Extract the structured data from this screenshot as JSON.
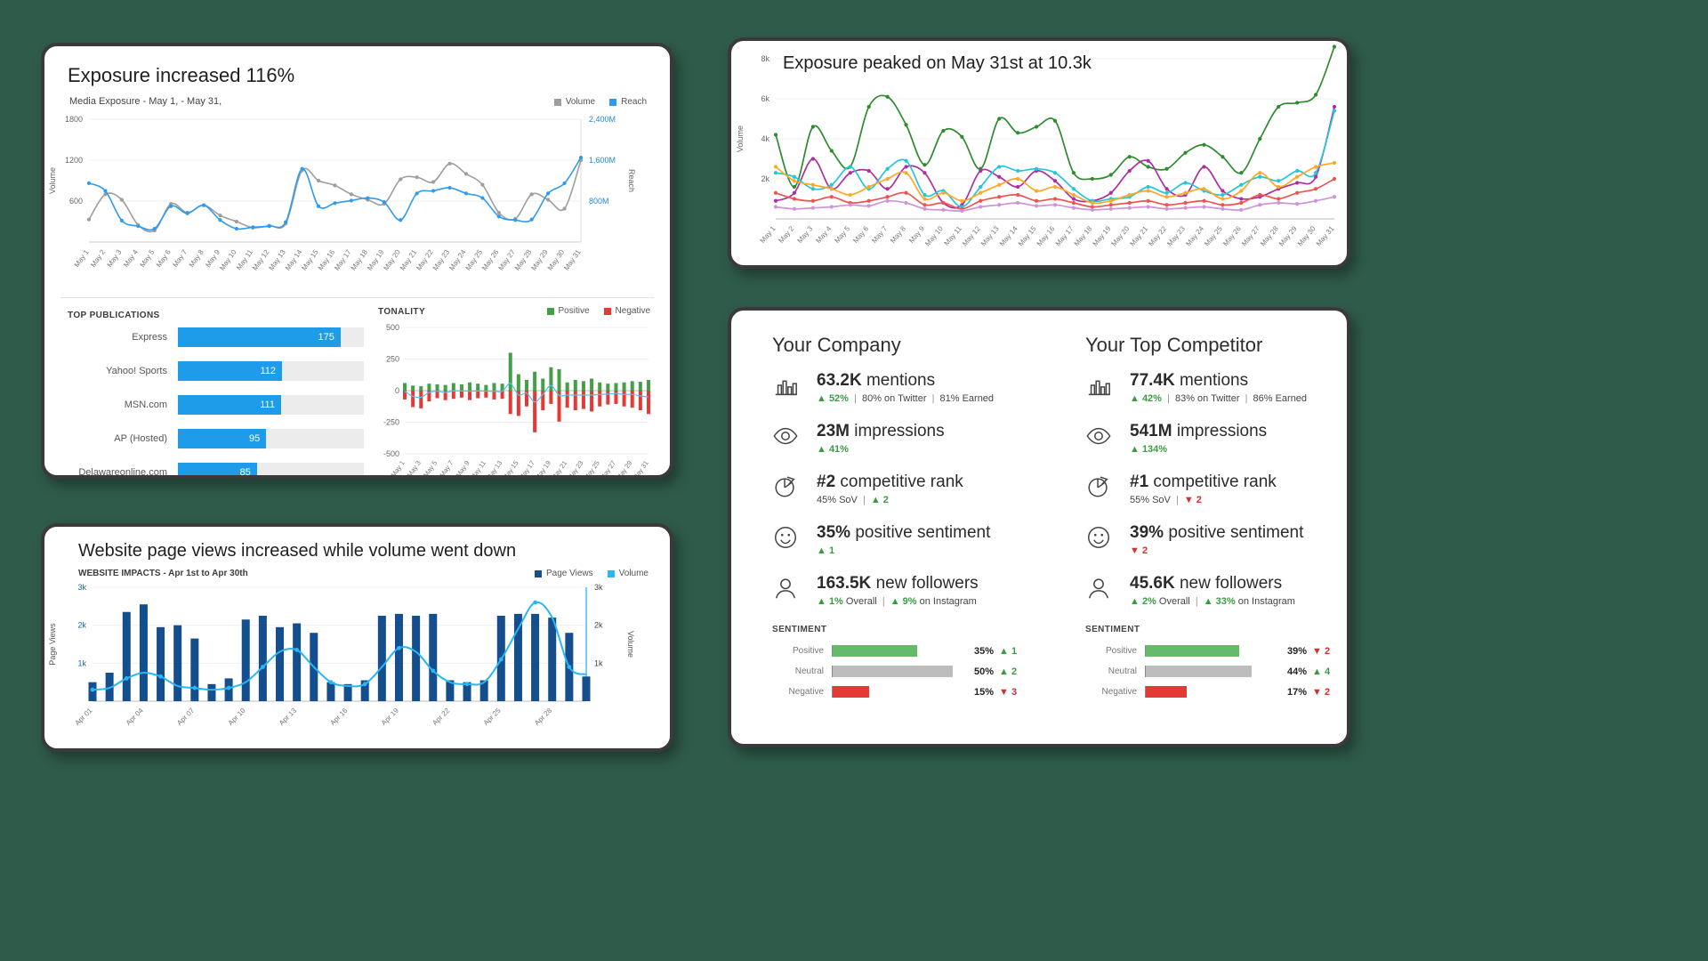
{
  "background_color": "#2F5B4A",
  "panels": {
    "exposure": {
      "title": "Exposure increased 116%",
      "subtitle": "Media Exposure - May 1, - May 31,",
      "legend": [
        {
          "label": "Volume",
          "color": "#9E9E9E"
        },
        {
          "label": "Reach",
          "color": "#2E9BF0"
        }
      ],
      "publications_title": "TOP PUBLICATIONS",
      "tonality_title": "TONALITY",
      "tonality_legend": [
        {
          "label": "Positive",
          "color": "#43A047"
        },
        {
          "label": "Negative",
          "color": "#E53935"
        }
      ]
    },
    "peak": {
      "title": "Exposure peaked on May 31st at 10.3k",
      "ylabel": "Volume"
    },
    "website": {
      "title": "Website page views increased while volume went down",
      "subtitle": "WEBSITE IMPACTS - Apr 1st to Apr 30th",
      "legend": [
        {
          "label": "Page Views",
          "color": "#144E8C"
        },
        {
          "label": "Volume",
          "color": "#29B6F6"
        }
      ]
    },
    "compare": {
      "company": {
        "title": "Your Company",
        "stats": [
          {
            "icon": "bar-chart",
            "value": "63.2K",
            "label": "mentions",
            "sub": [
              [
                "up",
                "▲ 52%"
              ],
              [
                "sep",
                "|"
              ],
              [
                "plain",
                "80% on Twitter"
              ],
              [
                "sep",
                "|"
              ],
              [
                "plain",
                "81% Earned"
              ]
            ]
          },
          {
            "icon": "eye",
            "value": "23M",
            "label": "impressions",
            "sub": [
              [
                "up",
                "▲ 41%"
              ]
            ]
          },
          {
            "icon": "pie",
            "value": "#2",
            "label": "competitive rank",
            "sub": [
              [
                "plain",
                "45% SoV"
              ],
              [
                "sep",
                "|"
              ],
              [
                "up",
                "▲ 2"
              ]
            ]
          },
          {
            "icon": "smiley",
            "value": "35%",
            "label": "positive sentiment",
            "sub": [
              [
                "up",
                "▲ 1"
              ]
            ]
          },
          {
            "icon": "person",
            "value": "163.5K",
            "label": "new followers",
            "sub": [
              [
                "up",
                "▲ 1%"
              ],
              [
                "plain",
                "Overall"
              ],
              [
                "sep",
                "|"
              ],
              [
                "up",
                "▲ 9%"
              ],
              [
                "plain",
                "on Instagram"
              ]
            ]
          }
        ]
      },
      "competitor": {
        "title": "Your Top Competitor",
        "stats": [
          {
            "icon": "bar-chart",
            "value": "77.4K",
            "label": "mentions",
            "sub": [
              [
                "up",
                "▲ 42%"
              ],
              [
                "sep",
                "|"
              ],
              [
                "plain",
                "83% on Twitter"
              ],
              [
                "sep",
                "|"
              ],
              [
                "plain",
                "86% Earned"
              ]
            ]
          },
          {
            "icon": "eye",
            "value": "541M",
            "label": "impressions",
            "sub": [
              [
                "up",
                "▲ 134%"
              ]
            ]
          },
          {
            "icon": "pie",
            "value": "#1",
            "label": "competitive rank",
            "sub": [
              [
                "plain",
                "55% SoV"
              ],
              [
                "sep",
                "|"
              ],
              [
                "down",
                "▼ 2"
              ]
            ]
          },
          {
            "icon": "smiley",
            "value": "39%",
            "label": "positive sentiment",
            "sub": [
              [
                "down",
                "▼ 2"
              ]
            ]
          },
          {
            "icon": "person",
            "value": "45.6K",
            "label": "new followers",
            "sub": [
              [
                "up",
                "▲ 2%"
              ],
              [
                "plain",
                "Overall"
              ],
              [
                "sep",
                "|"
              ],
              [
                "up",
                "▲ 33%"
              ],
              [
                "plain",
                "on Instagram"
              ]
            ]
          }
        ]
      },
      "sentiment": {
        "title": "SENTIMENT",
        "company": [
          [
            "Positive",
            "35%",
            "▲ 1",
            "up",
            35,
            "#66BB6A"
          ],
          [
            "Neutral",
            "50%",
            "▲ 2",
            "up",
            50,
            "#BDBDBD"
          ],
          [
            "Negative",
            "15%",
            "▼ 3",
            "down",
            15,
            "#E53935"
          ]
        ],
        "competitor": [
          [
            "Positive",
            "39%",
            "▼ 2",
            "down",
            39,
            "#66BB6A"
          ],
          [
            "Neutral",
            "44%",
            "▲ 4",
            "up",
            44,
            "#BDBDBD"
          ],
          [
            "Negative",
            "17%",
            "▼ 2",
            "down",
            17,
            "#E53935"
          ]
        ]
      }
    }
  },
  "chart_data": [
    {
      "id": "media_exposure",
      "type": "line",
      "title": "Media Exposure - May 1, - May 31,",
      "x": [
        "May 1",
        "May 2",
        "May 3",
        "May 4",
        "May 5",
        "May 6",
        "May 7",
        "May 8",
        "May 9",
        "May 10",
        "May 11",
        "May 12",
        "May 13",
        "May 14",
        "May 15",
        "May 16",
        "May 17",
        "May 18",
        "May 19",
        "May 20",
        "May 21",
        "May 22",
        "May 23",
        "May 24",
        "May 25",
        "May 26",
        "May 27",
        "May 28",
        "May 29",
        "May 30",
        "May 31"
      ],
      "ylabel_left": "Volume",
      "ylabel_right": "Reach",
      "left_max": 1800,
      "left_ticks": [
        600,
        1200,
        1800
      ],
      "right_max": 2400,
      "right_tick_vals": [
        800,
        1600,
        2400
      ],
      "right_ticks": [
        "800M",
        "1,600M",
        "2,400M"
      ],
      "legend_position": "top-right",
      "series": [
        {
          "name": "Volume",
          "axis": "left",
          "color": "#9E9E9E",
          "values": [
            330,
            700,
            620,
            250,
            170,
            560,
            430,
            540,
            390,
            300,
            210,
            240,
            270,
            1050,
            900,
            830,
            700,
            620,
            560,
            920,
            950,
            880,
            1150,
            1000,
            840,
            430,
            340,
            700,
            620,
            490,
            1200
          ]
        },
        {
          "name": "Reach",
          "axis": "right",
          "color": "#2E9BF0",
          "values": [
            1150,
            1000,
            420,
            310,
            260,
            700,
            560,
            720,
            430,
            260,
            290,
            310,
            390,
            1430,
            700,
            760,
            810,
            860,
            780,
            430,
            950,
            1000,
            1060,
            950,
            860,
            500,
            430,
            440,
            950,
            1150,
            1650
          ]
        }
      ]
    },
    {
      "id": "top_publications",
      "type": "bar",
      "orientation": "horizontal",
      "title": "TOP PUBLICATIONS",
      "categories": [
        "Express",
        "Yahoo! Sports",
        "MSN.com",
        "AP (Hosted)",
        "Delawareonline.com"
      ],
      "values": [
        175,
        112,
        111,
        95,
        85
      ],
      "xlim": [
        0,
        200
      ],
      "bar_color": "#1E9BE9",
      "track_color": "#ECECEC"
    },
    {
      "id": "tonality",
      "type": "bar",
      "title": "TONALITY",
      "x": [
        "May 1",
        "May 2",
        "May 3",
        "May 4",
        "May 5",
        "May 6",
        "May 7",
        "May 8",
        "May 9",
        "May 10",
        "May 11",
        "May 12",
        "May 13",
        "May 14",
        "May 15",
        "May 16",
        "May 17",
        "May 18",
        "May 19",
        "May 20",
        "May 21",
        "May 22",
        "May 23",
        "May 24",
        "May 25",
        "May 26",
        "May 27",
        "May 28",
        "May 29",
        "May 30",
        "May 31"
      ],
      "ylim": [
        -500,
        500
      ],
      "yticks": [
        -500,
        -250,
        0,
        250,
        500
      ],
      "x_tick_every": 2,
      "series": [
        {
          "name": "Positive",
          "color": "#43A047",
          "values": [
            60,
            40,
            35,
            55,
            50,
            45,
            60,
            50,
            65,
            55,
            45,
            60,
            55,
            300,
            130,
            85,
            150,
            95,
            185,
            170,
            65,
            85,
            75,
            95,
            65,
            55,
            60,
            65,
            75,
            70,
            85
          ]
        },
        {
          "name": "Negative",
          "color": "#E53935",
          "values": [
            -70,
            -130,
            -140,
            -85,
            -60,
            -75,
            -65,
            -55,
            -75,
            -60,
            -55,
            -70,
            -65,
            -185,
            -200,
            -125,
            -330,
            -155,
            -105,
            -245,
            -135,
            -155,
            -145,
            -165,
            -125,
            -110,
            -105,
            -125,
            -135,
            -155,
            -185
          ]
        }
      ],
      "net_line_color": "#4FC3F7"
    },
    {
      "id": "exposure_peak",
      "type": "line",
      "title": "Exposure peaked on May 31st at 10.3k",
      "ylabel": "Volume",
      "ymax": 8000,
      "ytick_vals": [
        2000,
        4000,
        6000,
        8000
      ],
      "ytick_labels": [
        "2k",
        "4k",
        "6k",
        "8k"
      ],
      "x": [
        "May 1",
        "May 2",
        "May 3",
        "May 4",
        "May 5",
        "May 6",
        "May 7",
        "May 8",
        "May 9",
        "May 10",
        "May 11",
        "May 12",
        "May 13",
        "May 14",
        "May 15",
        "May 16",
        "May 17",
        "May 18",
        "May 19",
        "May 20",
        "May 21",
        "May 22",
        "May 23",
        "May 24",
        "May 25",
        "May 26",
        "May 27",
        "May 28",
        "May 29",
        "May 30",
        "May 31"
      ],
      "series": [
        {
          "name": "green",
          "color": "#2E8B2E",
          "values": [
            4200,
            1600,
            4600,
            3400,
            2600,
            5600,
            6100,
            4700,
            2700,
            4400,
            4100,
            2500,
            5000,
            4300,
            4600,
            4900,
            2300,
            2000,
            2200,
            3100,
            2600,
            2500,
            3300,
            3700,
            3100,
            2300,
            4000,
            5600,
            5800,
            6200,
            10300
          ]
        },
        {
          "name": "magenta",
          "color": "#AB2FA0",
          "values": [
            900,
            1300,
            3000,
            1500,
            2300,
            2400,
            1500,
            2600,
            2300,
            800,
            700,
            2400,
            2100,
            1600,
            2400,
            1900,
            1000,
            900,
            1300,
            2400,
            2900,
            1500,
            1200,
            2600,
            1400,
            1000,
            1100,
            1500,
            1800,
            2100,
            5600
          ]
        },
        {
          "name": "cyan",
          "color": "#26C6DA",
          "values": [
            2300,
            2100,
            1500,
            1700,
            2600,
            1500,
            2500,
            2900,
            1200,
            1400,
            600,
            1600,
            2600,
            2400,
            2500,
            2300,
            1500,
            900,
            1000,
            1100,
            1600,
            1300,
            1800,
            1400,
            1200,
            1700,
            2100,
            1900,
            2400,
            2300,
            5400
          ]
        },
        {
          "name": "orange",
          "color": "#FFA726",
          "values": [
            2600,
            1900,
            1700,
            1500,
            1200,
            1600,
            2000,
            2300,
            1000,
            1300,
            900,
            1300,
            1700,
            2000,
            1400,
            1600,
            1200,
            800,
            900,
            1200,
            1400,
            1100,
            1300,
            1500,
            1000,
            1400,
            2300,
            1600,
            2100,
            2600,
            2800
          ]
        },
        {
          "name": "coral",
          "color": "#EF5350",
          "values": [
            1300,
            1000,
            900,
            1100,
            800,
            900,
            1100,
            1300,
            700,
            800,
            500,
            900,
            1100,
            1200,
            900,
            1000,
            800,
            600,
            700,
            800,
            900,
            700,
            800,
            900,
            700,
            800,
            1200,
            1000,
            1300,
            1500,
            2000
          ]
        },
        {
          "name": "lavender",
          "color": "#CE93D8",
          "values": [
            600,
            500,
            550,
            600,
            700,
            650,
            900,
            800,
            500,
            450,
            400,
            600,
            700,
            800,
            650,
            700,
            550,
            450,
            500,
            550,
            600,
            500,
            550,
            600,
            500,
            450,
            700,
            800,
            750,
            900,
            1100
          ]
        }
      ]
    },
    {
      "id": "website_impacts",
      "type": "bar+line",
      "title": "WEBSITE IMPACTS - Apr 1st to Apr 30th",
      "ylabel_left": "Page Views",
      "ylabel_right": "Volume",
      "ymax": 3000,
      "ytick_vals": [
        1000,
        2000,
        3000
      ],
      "ytick_labels": [
        "1k",
        "2k",
        "3k"
      ],
      "x_tick_every": 3,
      "x": [
        "Apr 01",
        "Apr 02",
        "Apr 03",
        "Apr 04",
        "Apr 05",
        "Apr 06",
        "Apr 07",
        "Apr 08",
        "Apr 09",
        "Apr 10",
        "Apr 11",
        "Apr 12",
        "Apr 13",
        "Apr 14",
        "Apr 15",
        "Apr 16",
        "Apr 17",
        "Apr 18",
        "Apr 19",
        "Apr 20",
        "Apr 21",
        "Apr 22",
        "Apr 23",
        "Apr 24",
        "Apr 25",
        "Apr 26",
        "Apr 27",
        "Apr 28",
        "Apr 29",
        "Apr 30"
      ],
      "bar_series": {
        "name": "Page Views",
        "color": "#144E8C",
        "values": [
          500,
          750,
          2350,
          2550,
          1950,
          2000,
          1650,
          450,
          600,
          2150,
          2250,
          1950,
          2050,
          1800,
          500,
          450,
          550,
          2250,
          2300,
          2250,
          2300,
          550,
          500,
          550,
          2250,
          2300,
          2300,
          2200,
          1800,
          650
        ]
      },
      "line_series": {
        "name": "Volume",
        "color": "#29B6F6",
        "values": [
          300,
          350,
          600,
          750,
          650,
          400,
          350,
          300,
          350,
          500,
          900,
          1300,
          1350,
          900,
          500,
          400,
          450,
          900,
          1400,
          1300,
          800,
          500,
          450,
          500,
          1100,
          1900,
          2600,
          2200,
          900,
          700
        ]
      }
    }
  ]
}
